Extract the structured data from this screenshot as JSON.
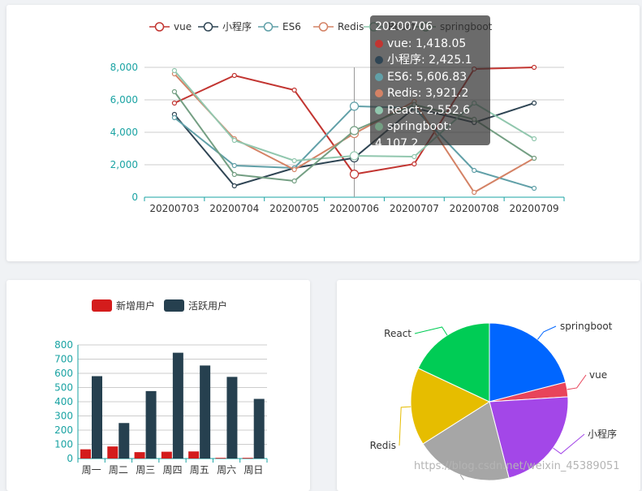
{
  "line_chart": {
    "legend": [
      "vue",
      "小程序",
      "ES6",
      "Redis",
      "React",
      "springboot"
    ],
    "tooltip": {
      "title": "20200706",
      "items": [
        {
          "name": "vue",
          "value": "1,418.05",
          "color": "#c23531"
        },
        {
          "name": "小程序",
          "value": "2,425.1",
          "color": "#2f4554"
        },
        {
          "name": "ES6",
          "value": "5,606.83",
          "color": "#61a0a8"
        },
        {
          "name": "Redis",
          "value": "3,921.2",
          "color": "#d48265"
        },
        {
          "name": "React",
          "value": "2,552.6",
          "color": "#91c7ae"
        },
        {
          "name": "springboot",
          "value": "4,107.2",
          "color": "#749f83"
        }
      ]
    }
  },
  "bar_chart": {
    "legend": [
      "新增用户",
      "活跃用户"
    ]
  },
  "pie_chart": {
    "labels": [
      "springboot",
      "vue",
      "小程序",
      "Redis",
      "React"
    ]
  },
  "watermark": "https://blog.csdn.net/weixin_45389051",
  "chart_data": [
    {
      "type": "line",
      "categories": [
        "20200703",
        "20200704",
        "20200705",
        "20200706",
        "20200707",
        "20200708",
        "20200709"
      ],
      "ylim": [
        0,
        8000
      ],
      "yticks": [
        "0",
        "2,000",
        "4,000",
        "6,000",
        "8,000"
      ],
      "colors": [
        "#c23531",
        "#2f4554",
        "#61a0a8",
        "#d48265",
        "#91c7ae",
        "#749f83"
      ],
      "series": [
        {
          "name": "vue",
          "values": [
            5800,
            7500,
            6600,
            1418.05,
            2050,
            7900,
            8000
          ]
        },
        {
          "name": "小程序",
          "values": [
            5100,
            700,
            1800,
            2425.1,
            5500,
            4600,
            5800
          ]
        },
        {
          "name": "ES6",
          "values": [
            4900,
            1950,
            1800,
            5606.83,
            5500,
            1650,
            550
          ]
        },
        {
          "name": "Redis",
          "values": [
            7600,
            3600,
            1700,
            3921.2,
            5900,
            300,
            2400
          ]
        },
        {
          "name": "React",
          "values": [
            7800,
            3500,
            2250,
            2552.6,
            2500,
            5800,
            3600
          ]
        },
        {
          "name": "springboot",
          "values": [
            6500,
            1400,
            1000,
            4107.2,
            5700,
            4800,
            2400
          ]
        }
      ]
    },
    {
      "type": "bar",
      "categories": [
        "周一",
        "周二",
        "周三",
        "周四",
        "周五",
        "周六",
        "周日"
      ],
      "ylim": [
        0,
        800
      ],
      "yticks": [
        "0",
        "100",
        "200",
        "300",
        "400",
        "500",
        "600",
        "700",
        "800"
      ],
      "colors": [
        "#d41c1c",
        "#26404f"
      ],
      "series": [
        {
          "name": "新增用户",
          "values": [
            65,
            85,
            45,
            48,
            50,
            5,
            5
          ]
        },
        {
          "name": "活跃用户",
          "values": [
            580,
            250,
            475,
            745,
            655,
            575,
            420
          ]
        }
      ]
    },
    {
      "type": "pie",
      "series": [
        {
          "name": "springboot",
          "value": 21,
          "color": "#0066ff"
        },
        {
          "name": "vue",
          "value": 3,
          "color": "#e8445a"
        },
        {
          "name": "小程序",
          "value": 22,
          "color": "#a347e8"
        },
        {
          "name": "",
          "value": 20,
          "color": "#a6a6a6"
        },
        {
          "name": "Redis",
          "value": 16,
          "color": "#e6bd00"
        },
        {
          "name": "React",
          "value": 18,
          "color": "#00cc55"
        }
      ]
    }
  ]
}
